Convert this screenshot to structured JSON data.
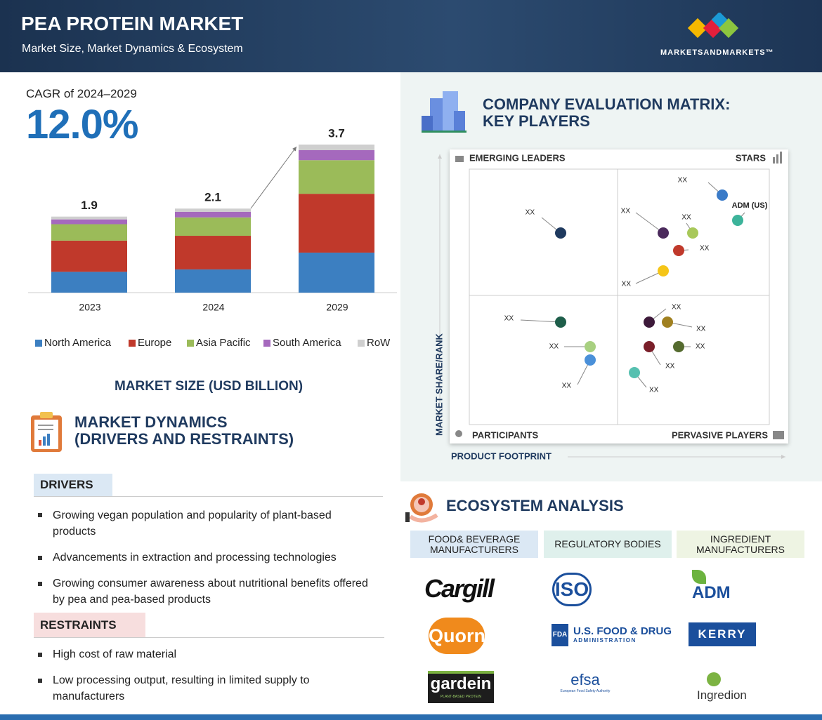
{
  "header": {
    "title": "PEA PROTEIN MARKET",
    "subtitle": "Market Size, Market Dynamics & Ecosystem",
    "brand": "MARKETSANDMARKETS™"
  },
  "cagr": {
    "label": "CAGR of 2024–2029",
    "value": "12.0%"
  },
  "chart_data": {
    "type": "bar",
    "stacked": true,
    "title": "MARKET SIZE (USD BILLION)",
    "categories": [
      "2023",
      "2024",
      "2029"
    ],
    "totals": [
      1.9,
      2.1,
      3.7
    ],
    "series": [
      {
        "name": "North America",
        "color": "#3c7fc1",
        "values": [
          0.52,
          0.58,
          1.0
        ]
      },
      {
        "name": "Europe",
        "color": "#c0392b",
        "values": [
          0.78,
          0.84,
          1.47
        ]
      },
      {
        "name": "Asia Pacific",
        "color": "#9bbb59",
        "values": [
          0.41,
          0.46,
          0.84
        ]
      },
      {
        "name": "South America",
        "color": "#a569bd",
        "values": [
          0.12,
          0.14,
          0.25
        ]
      },
      {
        "name": "RoW",
        "color": "#cfcfcf",
        "values": [
          0.07,
          0.08,
          0.14
        ]
      }
    ]
  },
  "market_dynamics": {
    "title_lines": [
      "MARKET DYNAMICS",
      "(DRIVERS AND RESTRAINTS)"
    ],
    "drivers": {
      "heading": "DRIVERS",
      "items": [
        "Growing vegan population and popularity of plant-based products",
        "Advancements in extraction and processing technologies",
        "Growing consumer awareness about nutritional benefits offered by pea and pea-based products"
      ]
    },
    "restraints": {
      "heading": "RESTRAINTS",
      "items": [
        "High cost of raw material",
        "Low processing output, resulting in limited supply to manufacturers"
      ]
    }
  },
  "matrix": {
    "title_lines": [
      "COMPANY EVALUATION MATRIX:",
      "KEY PLAYERS"
    ],
    "quadrants": {
      "top_left": "EMERGING LEADERS",
      "top_right": "STARS",
      "bottom_left": "PARTICIPANTS",
      "bottom_right": "PERVASIVE PLAYERS"
    },
    "y_label": "MARKET SHARE/RANK",
    "x_label": "PRODUCT FOOTPRINT",
    "points": [
      {
        "label": "XX"
      },
      {
        "label": "XX"
      },
      {
        "label": "ADM (US)"
      },
      {
        "label": "XX"
      },
      {
        "label": "XX"
      },
      {
        "label": "XX"
      },
      {
        "label": "XX"
      },
      {
        "label": "XX"
      },
      {
        "label": "XX"
      },
      {
        "label": "XX"
      },
      {
        "label": "XX"
      },
      {
        "label": "XX"
      },
      {
        "label": "XX"
      },
      {
        "label": "XX"
      },
      {
        "label": "XX"
      }
    ]
  },
  "ecosystem": {
    "title": "ECOSYSTEM ANALYSIS",
    "columns": [
      {
        "heading_lines": [
          "FOOD& BEVERAGE",
          "MANUFACTURERS"
        ],
        "companies": [
          {
            "lines": [
              "Cargill"
            ]
          },
          {
            "lines": [
              "Quorn"
            ]
          },
          {
            "lines": [
              "gardein",
              "PLANT-BASED PROTEIN"
            ]
          }
        ]
      },
      {
        "heading_lines": [
          "REGULATORY BODIES"
        ],
        "companies": [
          {
            "lines": [
              "ISO"
            ]
          },
          {
            "lines": [
              "FDA",
              "U.S. FOOD & DRUG",
              "ADMINISTRATION"
            ]
          },
          {
            "lines": [
              "efsa",
              "European Food Safety Authority"
            ]
          }
        ]
      },
      {
        "heading_lines": [
          "INGREDIENT",
          "MANUFACTURERS"
        ],
        "companies": [
          {
            "lines": [
              "ADM"
            ]
          },
          {
            "lines": [
              "KERRY"
            ]
          },
          {
            "lines": [
              "Ingredion"
            ]
          }
        ]
      }
    ]
  }
}
